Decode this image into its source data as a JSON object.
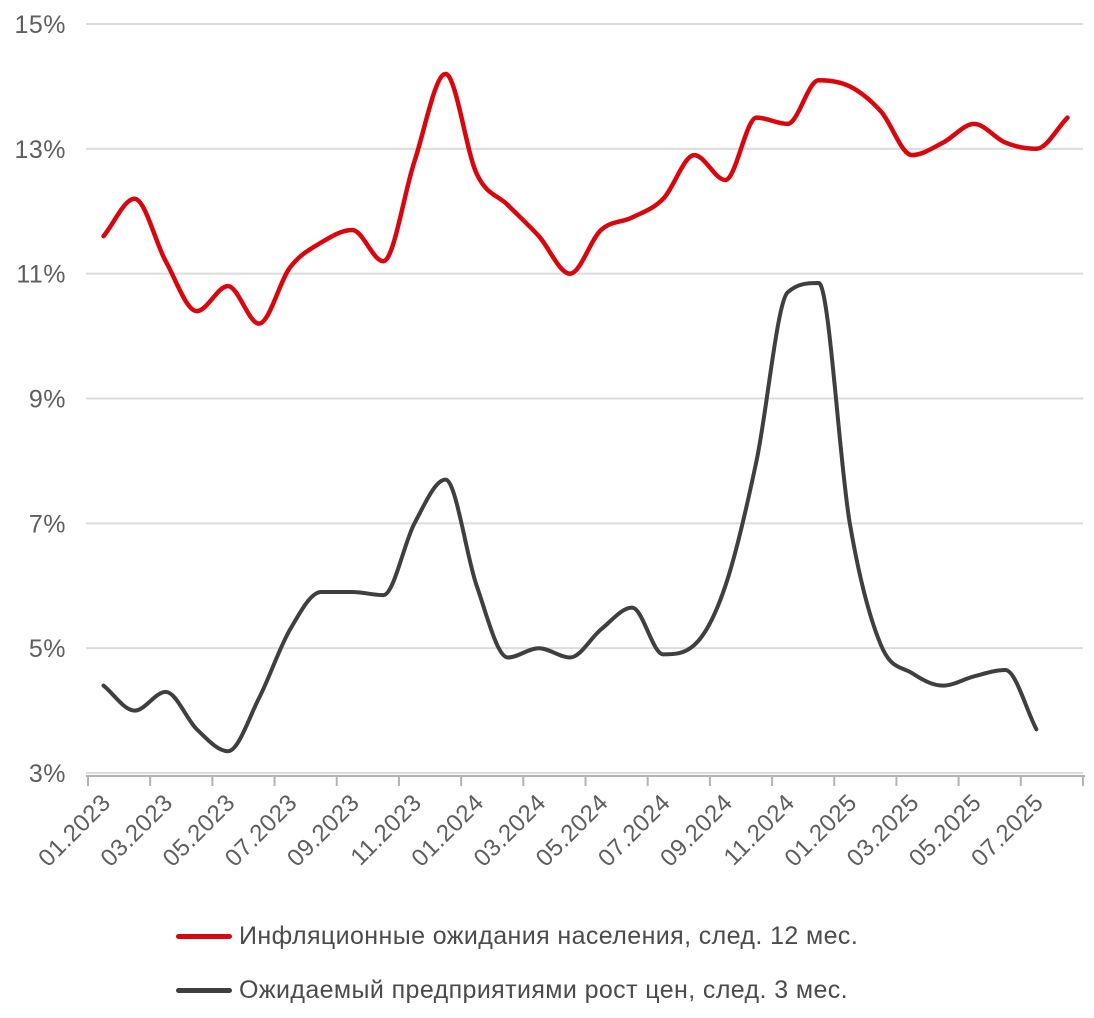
{
  "chart_data": {
    "type": "line",
    "title": "",
    "xlabel": "",
    "ylabel": "",
    "ylim": [
      3,
      15
    ],
    "y_tick_values": [
      15,
      13,
      11,
      9,
      7,
      5,
      3
    ],
    "y_tick_labels": [
      "15%",
      "13%",
      "11%",
      "9%",
      "7%",
      "5%",
      "3%"
    ],
    "x_tick_labels": [
      "01.2023",
      "03.2023",
      "05.2023",
      "07.2023",
      "09.2023",
      "11.2023",
      "01.2024",
      "03.2024",
      "05.2024",
      "07.2024",
      "09.2024",
      "11.2024",
      "01.2025",
      "03.2025",
      "05.2025",
      "07.2025"
    ],
    "months": [
      "01.2023",
      "02.2023",
      "03.2023",
      "04.2023",
      "05.2023",
      "06.2023",
      "07.2023",
      "08.2023",
      "09.2023",
      "10.2023",
      "11.2023",
      "12.2023",
      "01.2024",
      "02.2024",
      "03.2024",
      "04.2024",
      "05.2024",
      "06.2024",
      "07.2024",
      "08.2024",
      "09.2024",
      "10.2024",
      "11.2024",
      "12.2024",
      "01.2025",
      "02.2025",
      "03.2025",
      "04.2025",
      "05.2025",
      "06.2025",
      "07.2025",
      "08.2025"
    ],
    "grid": true,
    "legend_position": "bottom",
    "series": [
      {
        "name": "Инфляционные ожидания населения, след. 12 мес.",
        "color": "#d9070d",
        "stroke_width": 4.5,
        "values": [
          11.6,
          12.2,
          11.2,
          10.4,
          10.8,
          10.2,
          11.1,
          11.5,
          11.7,
          11.2,
          12.8,
          14.2,
          12.6,
          12.1,
          11.6,
          11.0,
          11.7,
          11.9,
          12.2,
          12.9,
          12.5,
          13.5,
          13.4,
          14.1,
          14.0,
          13.6,
          12.9,
          13.1,
          13.4,
          13.1,
          13.0,
          13.5
        ]
      },
      {
        "name": "Ожидаемый предприятиями рост цен, след. 3 мес.",
        "color": "#3f3f3f",
        "stroke_width": 4,
        "values": [
          4.4,
          4.0,
          4.3,
          3.7,
          3.35,
          4.2,
          5.3,
          5.9,
          5.9,
          5.85,
          7.0,
          7.7,
          6.0,
          4.85,
          5.0,
          4.85,
          5.3,
          5.65,
          4.9,
          5.05,
          6.0,
          8.0,
          10.7,
          10.85,
          7.0,
          5.05,
          4.6,
          4.4,
          4.55,
          4.65,
          3.7
        ]
      }
    ],
    "style": {
      "grid_color": "#dcdcdc",
      "axis_color": "#b3b3b3",
      "tick_label_color": "#5e5e5e"
    }
  }
}
